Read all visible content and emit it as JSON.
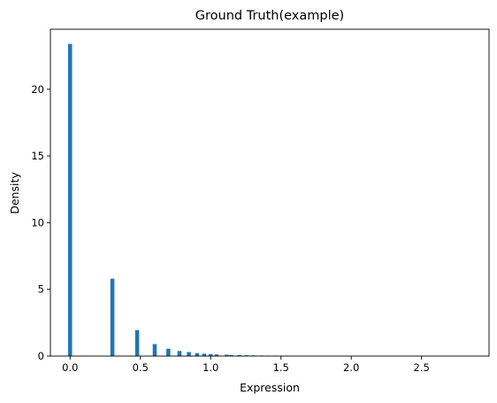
{
  "chart_data": {
    "type": "bar",
    "title": "Ground Truth(example)",
    "xlabel": "Expression",
    "ylabel": "Density",
    "xlim": [
      -0.14,
      2.98
    ],
    "ylim": [
      0,
      24.5
    ],
    "xticks": [
      "0.0",
      "0.5",
      "1.0",
      "1.5",
      "2.0",
      "2.5"
    ],
    "yticks": [
      "0",
      "5",
      "10",
      "15",
      "20"
    ],
    "bin_width": 0.0284,
    "bars": [
      {
        "x": 0.0,
        "y": 23.4
      },
      {
        "x": 0.301,
        "y": 5.8
      },
      {
        "x": 0.477,
        "y": 1.95
      },
      {
        "x": 0.602,
        "y": 0.9
      },
      {
        "x": 0.699,
        "y": 0.55
      },
      {
        "x": 0.778,
        "y": 0.38
      },
      {
        "x": 0.845,
        "y": 0.3
      },
      {
        "x": 0.903,
        "y": 0.22
      },
      {
        "x": 0.954,
        "y": 0.18
      },
      {
        "x": 1.0,
        "y": 0.15
      },
      {
        "x": 1.041,
        "y": 0.12
      },
      {
        "x": 1.114,
        "y": 0.1
      },
      {
        "x": 1.146,
        "y": 0.08
      },
      {
        "x": 1.204,
        "y": 0.07
      },
      {
        "x": 1.255,
        "y": 0.06
      },
      {
        "x": 1.301,
        "y": 0.05
      },
      {
        "x": 1.362,
        "y": 0.04
      },
      {
        "x": 1.415,
        "y": 0.035
      },
      {
        "x": 1.462,
        "y": 0.03
      },
      {
        "x": 1.505,
        "y": 0.02
      }
    ],
    "bar_color": "#1f77b4",
    "grid": false
  }
}
